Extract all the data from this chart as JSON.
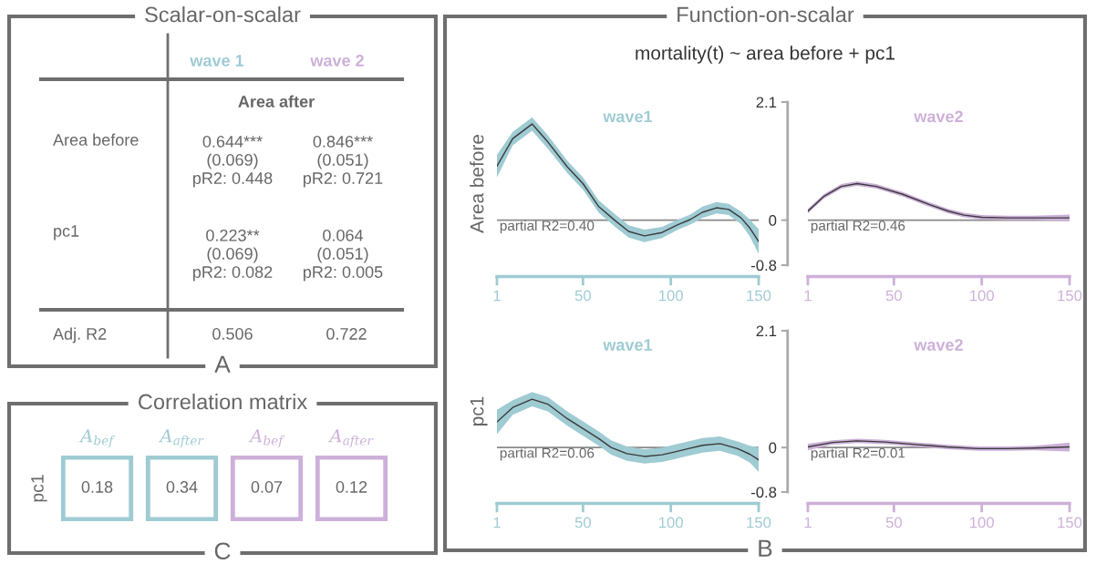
{
  "chart_data": [
    {
      "type": "other",
      "title": "Scalar-on-scalar",
      "colors": [
        "#9fcbd3",
        "#cdb0d9"
      ],
      "annotations": [
        "wave 1",
        "wave 2",
        "Area after",
        "Area before",
        "0.644***\n(0.069)\npR2: 0.448",
        "0.846***\n(0.051)\npR2: 0.721",
        "pc1",
        "0.223**\n(0.069)\npR2: 0.082",
        "0.064\n(0.051)\npR2: 0.005",
        "Adj. R2",
        "0.506",
        "0.722",
        "A"
      ]
    },
    {
      "type": "heatmap",
      "title": "Correlation matrix",
      "categories": [
        "A$_{bef}$",
        "A$_{after}$",
        "A$_{bef}$",
        "A$_{after}$"
      ],
      "y_categories": [
        "pc1"
      ],
      "cells": [
        [
          0.18,
          0.34,
          0.07,
          0.12
        ]
      ],
      "colors": [
        "#9fcbd3",
        "#9fcbd3",
        "#cdb0d9",
        "#cdb0d9"
      ],
      "data_labels": true,
      "annotations": [
        "C"
      ]
    },
    {
      "type": "other",
      "title": "Function-on-scalar",
      "subtitle": "mortality(t) ~ area before + pc1",
      "annotations": [
        "B"
      ]
    },
    {
      "type": "line",
      "title": "wave1",
      "ylabel": "Area before",
      "colors": [
        "#9fcbd3"
      ],
      "x": [
        1,
        10,
        21,
        30,
        41,
        50,
        59,
        68,
        76,
        85,
        95,
        104,
        111,
        118,
        126,
        133,
        140,
        145,
        150
      ],
      "series": [
        {
          "color": "#3a3a3a",
          "values": [
            0.96,
            1.45,
            1.71,
            1.39,
            0.95,
            0.65,
            0.24,
            0,
            -0.2,
            -0.28,
            -0.22,
            -0.08,
            0.01,
            0.14,
            0.22,
            0.19,
            0.04,
            -0.14,
            -0.38
          ],
          "lower": [
            0.76,
            1.33,
            1.59,
            1.27,
            0.84,
            0.54,
            0.13,
            -0.11,
            -0.31,
            -0.39,
            -0.32,
            -0.17,
            -0.08,
            0.04,
            0.12,
            0.09,
            -0.07,
            -0.29,
            -0.6
          ],
          "upper": [
            1.16,
            1.57,
            1.83,
            1.51,
            1.06,
            0.76,
            0.35,
            0.11,
            -0.09,
            -0.17,
            -0.12,
            0.01,
            0.1,
            0.24,
            0.32,
            0.29,
            0.15,
            0.01,
            -0.16
          ]
        }
      ],
      "xlim": [
        1,
        150
      ],
      "xticks": [
        1,
        50,
        100,
        150
      ],
      "ylim": [
        -0.8,
        2.1
      ],
      "yticks": [
        -0.8,
        0,
        2.1
      ],
      "tick_labels": "x",
      "ref_lines": [
        {
          "axis": "y",
          "value": 0
        }
      ],
      "annotations": [
        "partial R2=0.40"
      ]
    },
    {
      "type": "line",
      "title": "wave2",
      "colors": [
        "#cdb0d9"
      ],
      "x": [
        1,
        10,
        20,
        29,
        40,
        55,
        70,
        81,
        90,
        100,
        115,
        130,
        150
      ],
      "series": [
        {
          "color": "#3a3a3a",
          "values": [
            0.16,
            0.42,
            0.6,
            0.65,
            0.6,
            0.46,
            0.28,
            0.16,
            0.09,
            0.05,
            0.04,
            0.04,
            0.04
          ],
          "lower": [
            0.12,
            0.38,
            0.56,
            0.61,
            0.56,
            0.42,
            0.24,
            0.12,
            0.05,
            0.01,
            0,
            0,
            -0.02
          ],
          "upper": [
            0.2,
            0.46,
            0.64,
            0.69,
            0.64,
            0.5,
            0.32,
            0.2,
            0.13,
            0.09,
            0.08,
            0.08,
            0.1
          ]
        }
      ],
      "xlim": [
        1,
        150
      ],
      "xticks": [
        1,
        50,
        100,
        150
      ],
      "ylim": [
        -0.8,
        2.1
      ],
      "yticks": [
        -0.8,
        0,
        2.1
      ],
      "ref_lines": [
        {
          "axis": "y",
          "value": 0
        }
      ],
      "annotations": [
        "partial R2=0.46"
      ]
    },
    {
      "type": "line",
      "title": "wave1",
      "ylabel": "pc1",
      "colors": [
        "#9fcbd3"
      ],
      "x": [
        1,
        10,
        21,
        30,
        41,
        50,
        59,
        66,
        75,
        85,
        95,
        102,
        110,
        118,
        128,
        138,
        145,
        150
      ],
      "series": [
        {
          "color": "#3a3a3a",
          "values": [
            0.46,
            0.72,
            0.87,
            0.78,
            0.52,
            0.34,
            0.16,
            0,
            -0.11,
            -0.16,
            -0.13,
            -0.08,
            -0.02,
            0.04,
            0.07,
            -0.02,
            -0.12,
            -0.22
          ],
          "lower": [
            0.24,
            0.59,
            0.74,
            0.65,
            0.39,
            0.21,
            0.03,
            -0.13,
            -0.24,
            -0.29,
            -0.26,
            -0.21,
            -0.15,
            -0.09,
            -0.06,
            -0.15,
            -0.27,
            -0.44
          ],
          "upper": [
            0.68,
            0.85,
            1.0,
            0.91,
            0.65,
            0.47,
            0.29,
            0.13,
            0.02,
            -0.03,
            0,
            0.05,
            0.11,
            0.17,
            0.2,
            0.11,
            0.03,
            0
          ]
        }
      ],
      "xlim": [
        1,
        150
      ],
      "xticks": [
        1,
        50,
        100,
        150
      ],
      "ylim": [
        -0.8,
        2.1
      ],
      "yticks": [
        -0.8,
        0,
        2.1
      ],
      "tick_labels": "x",
      "ref_lines": [
        {
          "axis": "y",
          "value": 0
        }
      ],
      "annotations": [
        "partial R2=0.06"
      ]
    },
    {
      "type": "line",
      "title": "wave2",
      "colors": [
        "#cdb0d9"
      ],
      "x": [
        1,
        15,
        29,
        45,
        64,
        80,
        98,
        115,
        130,
        150
      ],
      "series": [
        {
          "color": "#3a3a3a",
          "values": [
            0.01,
            0.09,
            0.12,
            0.1,
            0.05,
            0.01,
            -0.02,
            -0.02,
            -0.01,
            0.01
          ],
          "lower": [
            -0.05,
            0.05,
            0.08,
            0.06,
            0.01,
            -0.03,
            -0.06,
            -0.06,
            -0.05,
            -0.07
          ],
          "upper": [
            0.07,
            0.13,
            0.16,
            0.14,
            0.09,
            0.05,
            0.02,
            0.02,
            0.03,
            0.09
          ]
        }
      ],
      "xlim": [
        1,
        150
      ],
      "xticks": [
        1,
        50,
        100,
        150
      ],
      "ylim": [
        -0.8,
        2.1
      ],
      "yticks": [
        -0.8,
        0,
        2.1
      ],
      "ref_lines": [
        {
          "axis": "y",
          "value": 0
        }
      ],
      "annotations": [
        "partial R2=0.01"
      ]
    }
  ]
}
